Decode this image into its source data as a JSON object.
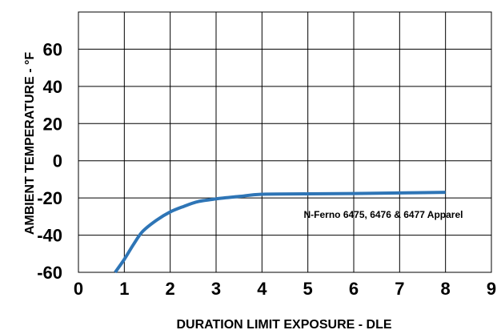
{
  "chart_data": {
    "type": "line",
    "xlabel": "DURATION LIMIT EXPOSURE - DLE",
    "ylabel": "AMBIENT TEMPERATURE - °F",
    "xlim": [
      0,
      9
    ],
    "ylim": [
      -60,
      80
    ],
    "x_ticks": [
      "0",
      "1",
      "2",
      "3",
      "4",
      "5",
      "6",
      "7",
      "8",
      "9"
    ],
    "y_ticks": [
      "60",
      "40",
      "20",
      "0",
      "-20",
      "-40",
      "-60"
    ],
    "grid": true,
    "line_color": "#2e75b6",
    "annotation": "N-Ferno 6475, 6476 & 6477 Apparel",
    "series": [
      {
        "x": [
          0.8,
          1.0,
          1.2,
          1.4,
          1.7,
          2.0,
          2.3,
          2.6,
          3.0,
          3.5,
          4.0,
          5.0,
          6.0,
          7.0,
          8.0
        ],
        "y": [
          -60,
          -53,
          -45,
          -38,
          -32,
          -27.5,
          -24.5,
          -22,
          -20.5,
          -19.2,
          -18,
          -17.8,
          -17.6,
          -17.3,
          -17
        ]
      }
    ]
  }
}
